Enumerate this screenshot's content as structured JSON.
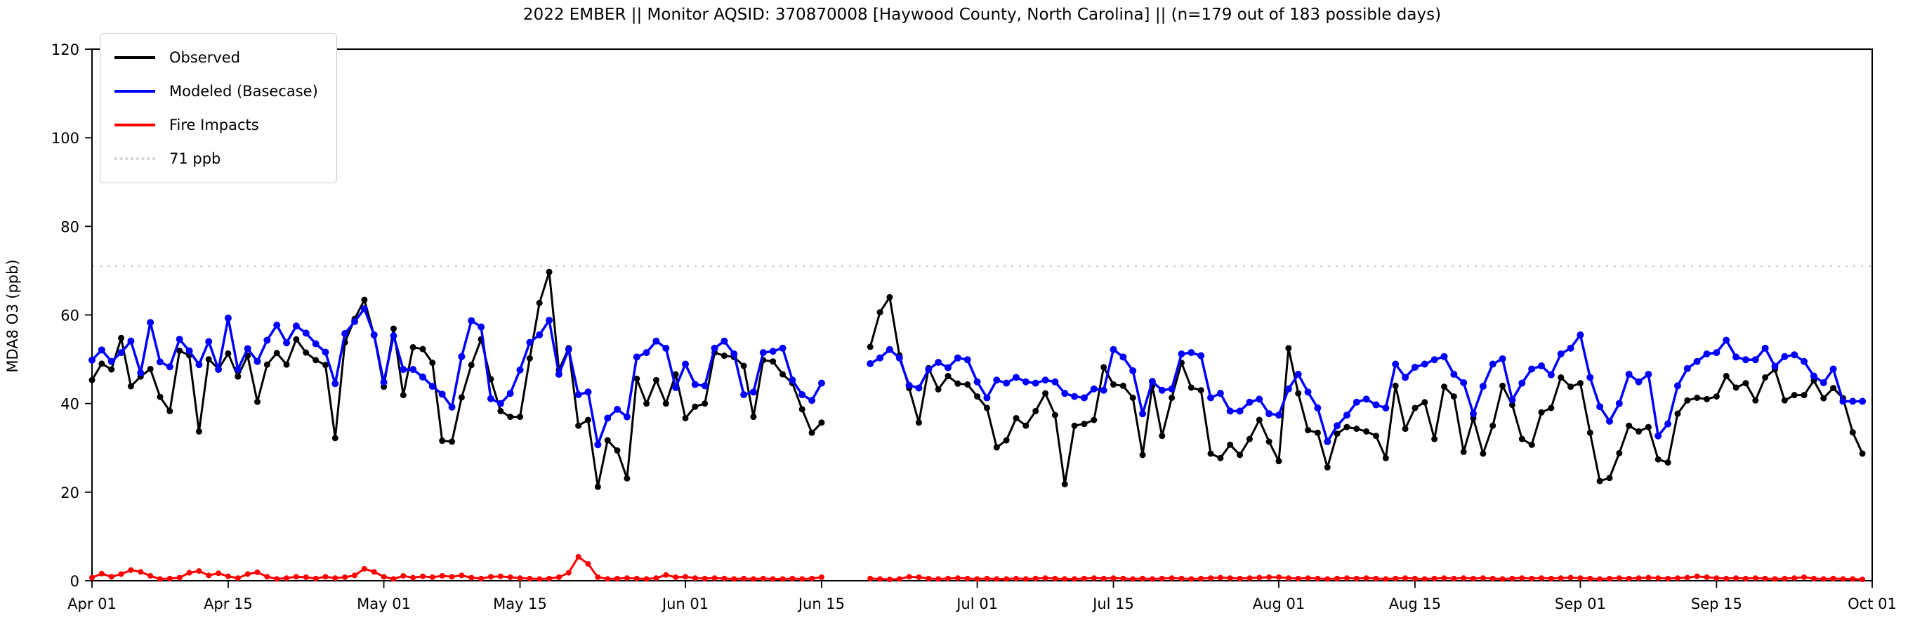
{
  "figure": {
    "title": "2022 EMBER || Monitor AQSID: 370870008 [Haywood County, North Carolina] || (n=179 out of 183 possible days)"
  },
  "chart_data": {
    "type": "line",
    "title": "2022 EMBER || Monitor AQSID: 370870008 [Haywood County, North Carolina] || (n=179 out of 183 possible days)",
    "xlabel": "",
    "ylabel": "MDA8 O3 (ppb)",
    "ylim": [
      0,
      120
    ],
    "y_ticks": [
      0,
      20,
      40,
      60,
      80,
      100,
      120
    ],
    "x_domain_days": 183,
    "x_range": [
      "Apr 01",
      "Oct 01"
    ],
    "observed_days_note": "n=179 out of 183 possible days",
    "grid": false,
    "legend_position": "upper-left",
    "x_ticks": [
      {
        "day": 0,
        "label": "Apr 01"
      },
      {
        "day": 14,
        "label": "Apr 15"
      },
      {
        "day": 30,
        "label": "May 01"
      },
      {
        "day": 44,
        "label": "May 15"
      },
      {
        "day": 61,
        "label": "Jun 01"
      },
      {
        "day": 75,
        "label": "Jun 15"
      },
      {
        "day": 91,
        "label": "Jul 01"
      },
      {
        "day": 105,
        "label": "Jul 15"
      },
      {
        "day": 122,
        "label": "Aug 01"
      },
      {
        "day": 136,
        "label": "Aug 15"
      },
      {
        "day": 153,
        "label": "Sep 01"
      },
      {
        "day": 167,
        "label": "Sep 15"
      },
      {
        "day": 183,
        "label": "Oct 01"
      }
    ],
    "reference_line": {
      "value": 71,
      "label": "71 ppb",
      "color": "#d3d3d3",
      "style": "dotted"
    },
    "legend": [
      {
        "label": "Observed",
        "color": "#000000",
        "style": "solid"
      },
      {
        "label": "Modeled (Basecase)",
        "color": "#0000ff",
        "style": "solid"
      },
      {
        "label": "Fire Impacts",
        "color": "#ff0000",
        "style": "solid"
      },
      {
        "label": "71 ppb",
        "color": "#d3d3d3",
        "style": "dotted"
      }
    ],
    "series": [
      {
        "name": "Observed",
        "color": "#000000",
        "line_width": 3,
        "marker_radius": 4.5,
        "values": [
          45.3,
          49.0,
          47.7,
          54.8,
          43.9,
          46.1,
          47.8,
          41.5,
          38.3,
          51.9,
          50.9,
          33.7,
          50.0,
          47.8,
          51.3,
          46.1,
          50.8,
          40.4,
          48.8,
          51.4,
          48.8,
          54.5,
          51.5,
          49.8,
          48.7,
          32.2,
          53.8,
          59.1,
          63.4,
          55.4,
          43.8,
          56.9,
          41.9,
          52.7,
          52.3,
          49.2,
          31.6,
          31.4,
          41.4,
          48.7,
          54.5,
          45.5,
          38.3,
          37.0,
          37.0,
          50.2,
          62.7,
          69.7,
          47.6,
          52.5,
          35.0,
          36.3,
          21.2,
          31.7,
          29.4,
          23.1,
          45.6,
          40.0,
          45.3,
          40.0,
          46.6,
          36.7,
          39.3,
          40.0,
          51.5,
          50.8,
          50.5,
          48.5,
          37.0,
          49.8,
          49.5,
          46.6,
          44.6,
          38.7,
          33.4,
          35.7,
          null,
          null,
          null,
          null,
          52.8,
          60.6,
          64.0,
          50.9,
          43.5,
          35.7,
          48.0,
          43.2,
          46.2,
          44.5,
          44.3,
          41.6,
          39.0,
          30.1,
          31.7,
          36.7,
          35.0,
          38.3,
          42.3,
          37.4,
          21.8,
          35.0,
          35.4,
          36.3,
          48.2,
          44.3,
          44.0,
          41.3,
          28.4,
          44.0,
          32.7,
          41.3,
          49.2,
          43.6,
          43.0,
          28.7,
          27.7,
          30.7,
          28.4,
          32.0,
          36.3,
          31.4,
          27.0,
          52.5,
          42.3,
          34.0,
          33.4,
          25.6,
          33.2,
          34.7,
          34.3,
          33.7,
          32.7,
          27.7,
          44.0,
          34.3,
          39.0,
          40.3,
          32.0,
          43.8,
          41.6,
          29.1,
          36.7,
          28.7,
          35.0,
          44.0,
          39.7,
          32.0,
          30.7,
          38.0,
          39.0,
          45.9,
          43.8,
          44.6,
          33.4,
          22.5,
          23.2,
          28.8,
          35.0,
          33.7,
          34.7,
          27.4,
          26.7,
          37.7,
          40.7,
          41.3,
          41.0,
          41.6,
          46.2,
          43.6,
          44.6,
          40.7,
          45.9,
          47.7,
          40.7,
          41.9,
          41.9,
          45.2,
          41.2,
          43.5,
          41.2,
          33.5,
          28.7
        ]
      },
      {
        "name": "Modeled (Basecase)",
        "color": "#0000ff",
        "line_width": 3.5,
        "marker_radius": 5,
        "values": [
          49.8,
          52.1,
          49.5,
          51.5,
          54.1,
          46.9,
          58.3,
          49.4,
          48.3,
          54.5,
          51.9,
          48.8,
          54.0,
          47.7,
          59.3,
          47.7,
          52.4,
          49.5,
          54.3,
          57.7,
          53.7,
          57.5,
          55.9,
          53.5,
          51.6,
          44.5,
          55.8,
          58.5,
          61.4,
          55.5,
          44.8,
          55.3,
          47.7,
          47.7,
          46.0,
          43.9,
          42.1,
          39.2,
          50.6,
          58.7,
          57.3,
          41.1,
          40.0,
          42.3,
          47.6,
          53.8,
          55.5,
          58.8,
          46.6,
          52.2,
          42.0,
          42.6,
          30.7,
          36.7,
          38.7,
          37.0,
          50.5,
          51.5,
          54.1,
          52.5,
          43.6,
          48.9,
          44.3,
          44.0,
          52.5,
          54.1,
          51.2,
          42.0,
          42.6,
          51.5,
          51.8,
          52.5,
          45.3,
          42.0,
          40.7,
          44.6,
          null,
          null,
          null,
          null,
          49.0,
          50.3,
          52.2,
          50.3,
          44.1,
          43.5,
          47.7,
          49.3,
          48.1,
          50.3,
          49.9,
          44.9,
          41.3,
          45.3,
          44.6,
          45.9,
          44.9,
          44.6,
          45.3,
          44.9,
          42.3,
          41.6,
          41.3,
          43.3,
          43.0,
          52.2,
          50.5,
          47.4,
          37.7,
          45.0,
          43.0,
          43.3,
          51.2,
          51.5,
          50.8,
          41.3,
          42.3,
          38.3,
          38.3,
          40.3,
          41.0,
          37.7,
          37.4,
          43.3,
          46.6,
          42.6,
          39.0,
          31.4,
          35.0,
          37.4,
          40.3,
          41.0,
          39.7,
          39.0,
          48.9,
          45.9,
          48.2,
          48.9,
          49.9,
          50.6,
          46.6,
          44.7,
          37.7,
          43.9,
          48.9,
          50.1,
          40.8,
          44.6,
          47.8,
          48.5,
          46.5,
          51.2,
          52.5,
          55.5,
          45.9,
          39.3,
          36.0,
          40.0,
          46.6,
          44.9,
          46.6,
          32.7,
          35.4,
          44.0,
          47.9,
          49.5,
          51.2,
          51.5,
          54.3,
          50.5,
          49.9,
          49.9,
          52.5,
          48.4,
          50.6,
          51.0,
          49.5,
          46.2,
          44.7,
          47.8,
          40.5,
          40.5,
          40.5
        ]
      },
      {
        "name": "Fire Impacts",
        "color": "#ff0000",
        "line_width": 3,
        "marker_radius": 4,
        "values": [
          0.7,
          1.6,
          0.9,
          1.5,
          2.4,
          2.0,
          1.1,
          0.4,
          0.5,
          0.7,
          1.8,
          2.2,
          1.2,
          1.7,
          1.0,
          0.6,
          1.5,
          1.9,
          0.9,
          0.4,
          0.6,
          0.9,
          0.8,
          0.5,
          0.9,
          0.6,
          0.8,
          1.2,
          2.7,
          2.0,
          0.9,
          0.4,
          1.1,
          0.7,
          1.0,
          0.8,
          1.1,
          0.9,
          1.2,
          0.7,
          0.5,
          0.9,
          1.0,
          0.8,
          0.6,
          0.5,
          0.4,
          0.5,
          0.8,
          1.8,
          5.4,
          3.8,
          0.8,
          0.4,
          0.5,
          0.6,
          0.5,
          0.4,
          0.6,
          1.3,
          0.8,
          0.9,
          0.6,
          0.5,
          0.6,
          0.5,
          0.4,
          0.5,
          0.4,
          0.5,
          0.4,
          0.4,
          0.5,
          0.4,
          0.5,
          0.8,
          null,
          null,
          null,
          null,
          0.5,
          0.4,
          0.3,
          0.4,
          0.9,
          0.8,
          0.5,
          0.4,
          0.5,
          0.6,
          0.5,
          0.4,
          0.5,
          0.4,
          0.4,
          0.5,
          0.4,
          0.5,
          0.6,
          0.5,
          0.4,
          0.4,
          0.5,
          0.6,
          0.5,
          0.6,
          0.5,
          0.4,
          0.5,
          0.4,
          0.5,
          0.6,
          0.5,
          0.4,
          0.5,
          0.6,
          0.7,
          0.6,
          0.5,
          0.6,
          0.7,
          0.8,
          0.8,
          0.6,
          0.5,
          0.6,
          0.5,
          0.4,
          0.5,
          0.6,
          0.5,
          0.6,
          0.5,
          0.4,
          0.5,
          0.6,
          0.5,
          0.4,
          0.5,
          0.6,
          0.5,
          0.6,
          0.5,
          0.6,
          0.5,
          0.4,
          0.5,
          0.6,
          0.5,
          0.6,
          0.5,
          0.6,
          0.7,
          0.6,
          0.5,
          0.4,
          0.5,
          0.6,
          0.5,
          0.6,
          0.7,
          0.6,
          0.5,
          0.6,
          0.7,
          1.0,
          0.8,
          0.6,
          0.5,
          0.6,
          0.5,
          0.6,
          0.5,
          0.4,
          0.5,
          0.6,
          0.8,
          0.5,
          0.4,
          0.5,
          0.4,
          0.4,
          0.3
        ]
      }
    ]
  }
}
